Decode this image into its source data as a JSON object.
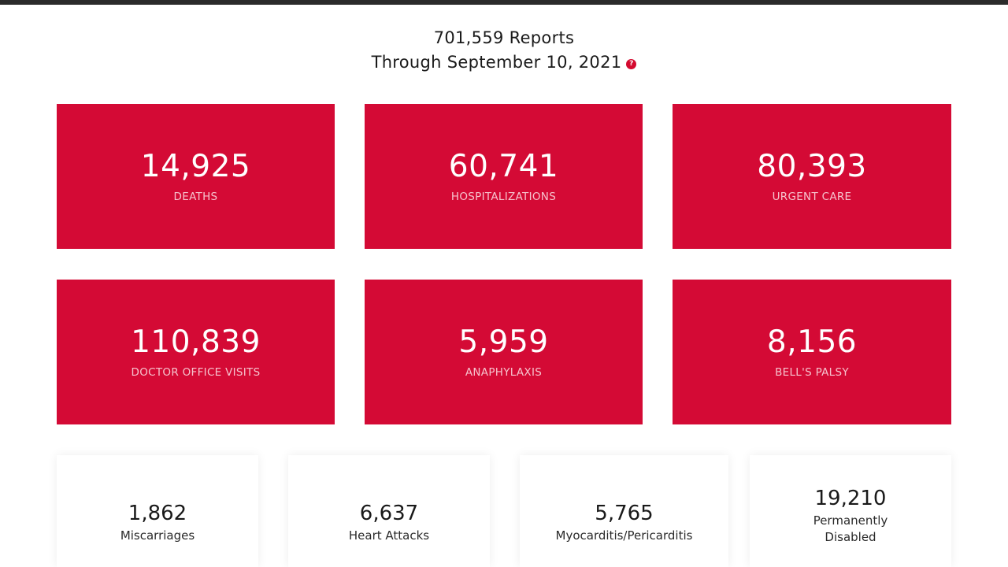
{
  "header": {
    "reports_line": "701,559 Reports",
    "through_line": "Through September 10, 2021",
    "help_icon": "?"
  },
  "cards": [
    {
      "value": "14,925",
      "label": "DEATHS"
    },
    {
      "value": "60,741",
      "label": "HOSPITALIZATIONS"
    },
    {
      "value": "80,393",
      "label": "URGENT CARE"
    },
    {
      "value": "110,839",
      "label": "DOCTOR OFFICE VISITS"
    },
    {
      "value": "5,959",
      "label": "ANAPHYLAXIS"
    },
    {
      "value": "8,156",
      "label": "BELL'S PALSY"
    }
  ],
  "stats": [
    {
      "value": "1,862",
      "label": "Miscarriages"
    },
    {
      "value": "6,637",
      "label": "Heart Attacks"
    },
    {
      "value": "5,765",
      "label": "Myocarditis/Pericarditis"
    },
    {
      "value": "19,210",
      "label_line1": "Permanently",
      "label_line2": "Disabled"
    }
  ],
  "colors": {
    "accent": "#d40a35",
    "top_bar": "#2b2b2b",
    "background": "#ffffff"
  }
}
